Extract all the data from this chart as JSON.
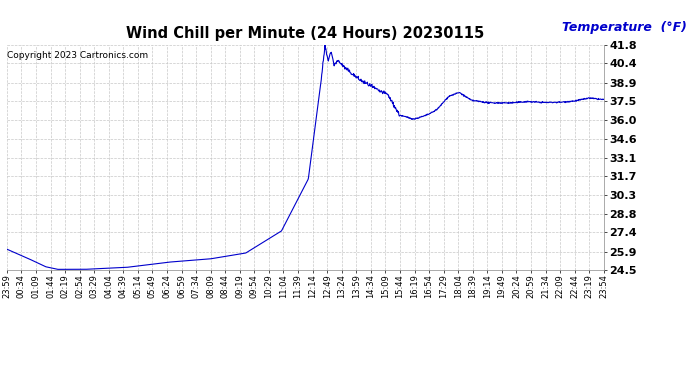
{
  "title": "Wind Chill per Minute (24 Hours) 20230115",
  "ylabel": "Temperature  (°F)",
  "copyright_text": "Copyright 2023 Cartronics.com",
  "line_color": "#0000cc",
  "background_color": "#ffffff",
  "grid_color": "#c8c8c8",
  "ylabel_color": "#0000cc",
  "ylim": [
    24.5,
    41.8
  ],
  "yticks": [
    24.5,
    25.9,
    27.4,
    28.8,
    30.3,
    31.7,
    33.1,
    34.6,
    36.0,
    37.5,
    38.9,
    40.4,
    41.8
  ],
  "xtick_labels": [
    "23:59",
    "00:34",
    "01:09",
    "01:44",
    "02:19",
    "02:54",
    "03:29",
    "04:04",
    "04:39",
    "05:14",
    "05:49",
    "06:24",
    "06:59",
    "07:34",
    "08:09",
    "08:44",
    "09:19",
    "09:54",
    "10:29",
    "11:04",
    "11:39",
    "12:14",
    "12:49",
    "13:24",
    "13:59",
    "14:34",
    "15:09",
    "15:44",
    "16:19",
    "16:54",
    "17:29",
    "18:04",
    "18:39",
    "19:14",
    "19:49",
    "20:24",
    "20:59",
    "21:34",
    "22:09",
    "22:44",
    "23:19",
    "23:54"
  ],
  "ctrl_t": [
    0.0,
    0.035,
    0.065,
    0.085,
    0.13,
    0.2,
    0.27,
    0.34,
    0.4,
    0.46,
    0.505,
    0.525,
    0.533,
    0.538,
    0.543,
    0.548,
    0.555,
    0.565,
    0.578,
    0.592,
    0.608,
    0.622,
    0.638,
    0.658,
    0.682,
    0.7,
    0.712,
    0.722,
    0.74,
    0.758,
    0.778,
    0.808,
    0.845,
    0.872,
    0.9,
    0.928,
    0.952,
    0.975,
    1.0
  ],
  "ctrl_v": [
    26.1,
    25.4,
    24.75,
    24.55,
    24.55,
    24.7,
    25.1,
    25.35,
    25.8,
    27.5,
    31.5,
    38.5,
    41.7,
    40.6,
    41.3,
    40.3,
    40.6,
    40.1,
    39.6,
    39.1,
    38.7,
    38.3,
    38.0,
    36.4,
    36.1,
    36.35,
    36.6,
    36.9,
    37.85,
    38.15,
    37.55,
    37.35,
    37.35,
    37.45,
    37.38,
    37.4,
    37.5,
    37.72,
    37.6
  ]
}
